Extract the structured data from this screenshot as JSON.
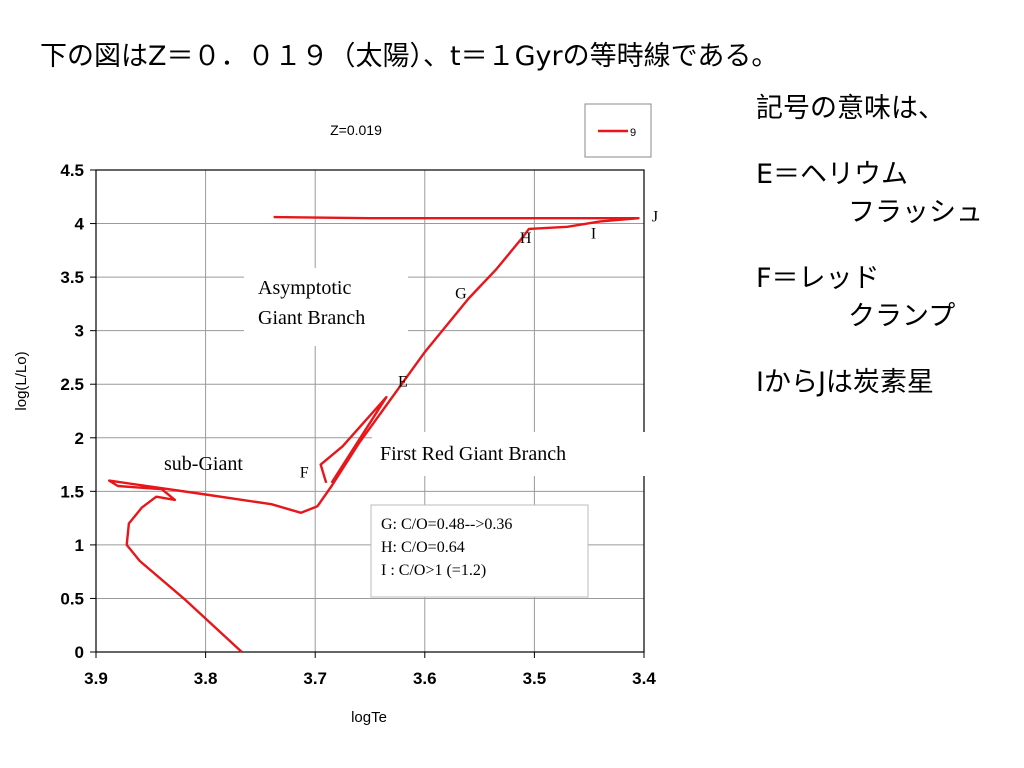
{
  "slide": {
    "title": "下の図はZ＝０．０１９（太陽）、t＝１Gyrの等時線である。",
    "notes": {
      "heading": "記号の意味は、",
      "e_line1": "E＝ヘリウム",
      "e_line2": "フラッシュ",
      "f_line1": "F＝レッド",
      "f_line2": "クランプ",
      "ij_line": "IからJは炭素星"
    }
  },
  "chart_data": {
    "type": "line",
    "title": "Z=0.019",
    "xlabel": "logTe",
    "ylabel": "log(L/Lo)",
    "xlim": [
      3.9,
      3.4
    ],
    "ylim": [
      0,
      4.5
    ],
    "x_ticks": [
      "3.9",
      "3.8",
      "3.7",
      "3.6",
      "3.5",
      "3.4"
    ],
    "y_ticks": [
      "0",
      "0.5",
      "1",
      "1.5",
      "2",
      "2.5",
      "3",
      "3.5",
      "4",
      "4.5"
    ],
    "grid": true,
    "legend": {
      "position": "top-right",
      "entries": [
        "9"
      ]
    },
    "series": [
      {
        "name": "9",
        "color": "#e8161b",
        "points": [
          [
            3.767,
            0.0
          ],
          [
            3.82,
            0.5
          ],
          [
            3.86,
            0.85
          ],
          [
            3.872,
            1.0
          ],
          [
            3.87,
            1.2
          ],
          [
            3.858,
            1.35
          ],
          [
            3.845,
            1.45
          ],
          [
            3.828,
            1.42
          ],
          [
            3.84,
            1.52
          ],
          [
            3.88,
            1.55
          ],
          [
            3.888,
            1.6
          ],
          [
            3.8,
            1.47
          ],
          [
            3.74,
            1.38
          ],
          [
            3.713,
            1.3
          ],
          [
            3.698,
            1.36
          ],
          [
            3.685,
            1.55
          ],
          [
            3.66,
            1.95
          ],
          [
            3.6,
            2.8
          ],
          [
            3.56,
            3.3
          ],
          [
            3.535,
            3.57
          ],
          [
            3.51,
            3.88
          ],
          [
            3.505,
            3.95
          ],
          [
            3.47,
            3.97
          ],
          [
            3.44,
            4.02
          ],
          [
            3.405,
            4.05
          ],
          [
            3.65,
            4.05
          ],
          [
            3.738,
            4.06
          ]
        ],
        "red_clump_loop": [
          [
            3.69,
            1.58
          ],
          [
            3.695,
            1.75
          ],
          [
            3.675,
            1.92
          ],
          [
            3.655,
            2.15
          ],
          [
            3.635,
            2.38
          ],
          [
            3.685,
            1.58
          ]
        ]
      }
    ],
    "point_labels": [
      {
        "label": "J",
        "x": 3.39,
        "y": 4.02
      },
      {
        "label": "I",
        "x": 3.446,
        "y": 3.86
      },
      {
        "label": "H",
        "x": 3.508,
        "y": 3.82
      },
      {
        "label": "G",
        "x": 3.567,
        "y": 3.3
      },
      {
        "label": "E",
        "x": 3.62,
        "y": 2.48
      },
      {
        "label": "F",
        "x": 3.71,
        "y": 1.63
      }
    ],
    "annotations": {
      "agb_line1": "Asymptotic",
      "agb_line2": "Giant Branch",
      "rgb": "First Red Giant Branch",
      "subgiant": "sub-Giant",
      "co_g": "G: C/O=0.48-->0.36",
      "co_h": "H:  C/O=0.64",
      "co_i": "I :   C/O>1 (=1.2)"
    }
  }
}
